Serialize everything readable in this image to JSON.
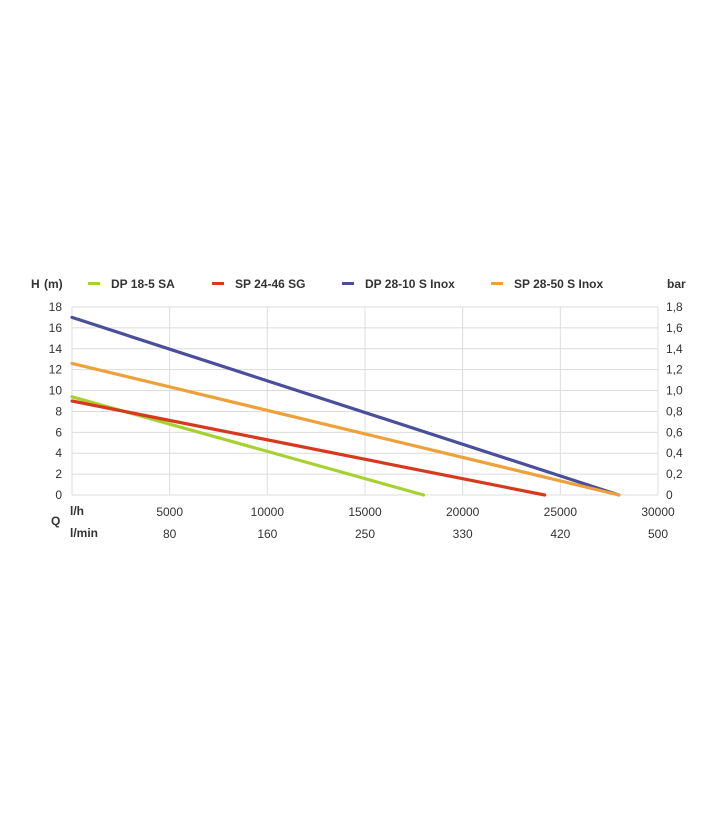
{
  "chart_data": {
    "type": "line",
    "left_axis_label": "H",
    "left_axis_unit": "(m)",
    "right_axis_label": "bar",
    "y_ticks": [
      "0",
      "2",
      "4",
      "6",
      "8",
      "10",
      "12",
      "14",
      "16",
      "18"
    ],
    "right_ticks": [
      "0",
      "0,2",
      "0,4",
      "0,6",
      "0,8",
      "1,0",
      "1,2",
      "1,4",
      "1,6",
      "1,8"
    ],
    "ylim": [
      0,
      18
    ],
    "xlim": [
      0,
      30000
    ],
    "x_ticks": [
      5000,
      10000,
      15000,
      20000,
      25000,
      30000
    ],
    "x_tick_labels": [
      "5000",
      "10000",
      "15000",
      "20000",
      "25000",
      "30000"
    ],
    "x_unit_lh": "l/h",
    "q_label": "Q",
    "x_unit_lmin": "l/min",
    "lmin_tick_labels": [
      "80",
      "160",
      "250",
      "330",
      "420",
      "500"
    ],
    "grid": true,
    "legend_placement": "top",
    "series": [
      {
        "name": "DP 18-5 SA",
        "color": "#a6d231",
        "x": [
          0,
          18000
        ],
        "y": [
          9.4,
          0
        ]
      },
      {
        "name": "SP 24-46 SG",
        "color": "#d63a1e",
        "x": [
          0,
          24200
        ],
        "y": [
          9.0,
          0
        ]
      },
      {
        "name": "DP 28-10 S Inox",
        "color": "#4a4f9c",
        "x": [
          0,
          28000
        ],
        "y": [
          17.0,
          0
        ]
      },
      {
        "name": "SP 28-50 S Inox",
        "color": "#eea13a",
        "x": [
          0,
          28000
        ],
        "y": [
          12.6,
          0
        ]
      }
    ]
  }
}
